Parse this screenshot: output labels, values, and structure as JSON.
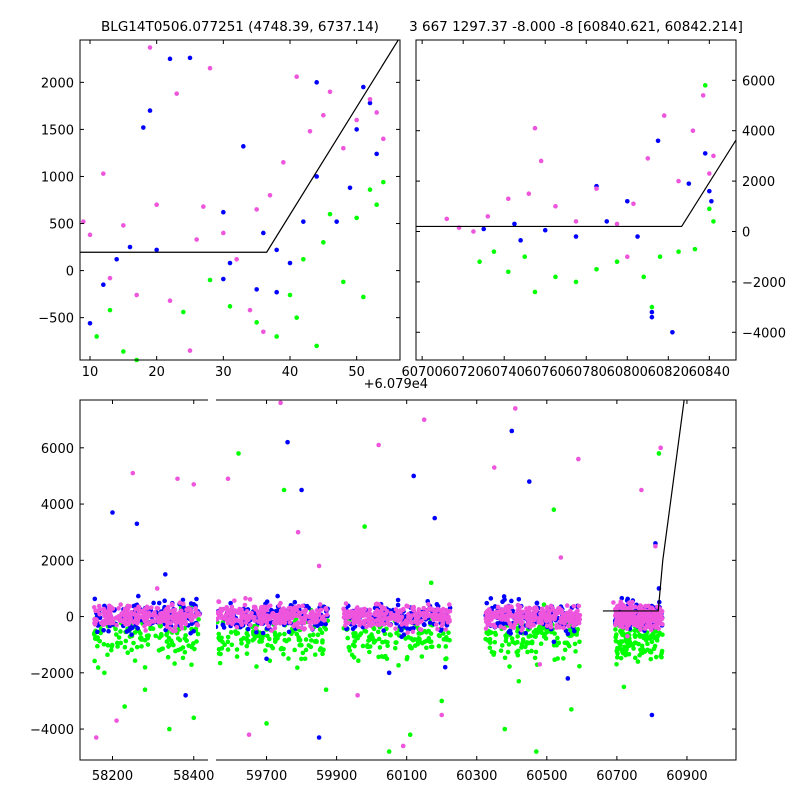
{
  "chart_data": [
    {
      "id": "top-left",
      "type": "scatter",
      "title": "BLG14T0506.077251 (4748.39, 6737.14)",
      "xlabel": "",
      "ylabel": "",
      "x_offset_label": "+6.079e4",
      "xlim": [
        8.5,
        56.5
      ],
      "ylim": [
        -950,
        2450
      ],
      "xticks": [
        10,
        20,
        30,
        40,
        50
      ],
      "yticks": [
        -500,
        0,
        500,
        1000,
        1500,
        2000
      ],
      "yaxis_side": "left",
      "series": [
        {
          "name": "blue",
          "color": "#0000ff",
          "points": [
            [
              10,
              -560
            ],
            [
              12,
              -150
            ],
            [
              14,
              120
            ],
            [
              16,
              250
            ],
            [
              18,
              1520
            ],
            [
              19,
              1700
            ],
            [
              20,
              220
            ],
            [
              22,
              2250
            ],
            [
              25,
              2260
            ],
            [
              30,
              620
            ],
            [
              31,
              80
            ],
            [
              33,
              1320
            ],
            [
              35,
              -200
            ],
            [
              36,
              400
            ],
            [
              38,
              220
            ],
            [
              40,
              80
            ],
            [
              42,
              520
            ],
            [
              44,
              1000
            ],
            [
              47,
              520
            ],
            [
              49,
              880
            ],
            [
              50,
              1500
            ],
            [
              51,
              1950
            ],
            [
              52,
              1780
            ],
            [
              53,
              1240
            ],
            [
              44,
              2000
            ],
            [
              38,
              -230
            ],
            [
              30,
              -90
            ]
          ]
        },
        {
          "name": "green",
          "color": "#00ff00",
          "points": [
            [
              11,
              -700
            ],
            [
              13,
              -420
            ],
            [
              15,
              -860
            ],
            [
              17,
              -950
            ],
            [
              24,
              -440
            ],
            [
              28,
              -100
            ],
            [
              31,
              -380
            ],
            [
              35,
              -550
            ],
            [
              38,
              -700
            ],
            [
              40,
              -260
            ],
            [
              42,
              120
            ],
            [
              44,
              -800
            ],
            [
              46,
              600
            ],
            [
              48,
              -120
            ],
            [
              50,
              560
            ],
            [
              51,
              -280
            ],
            [
              52,
              860
            ],
            [
              53,
              700
            ],
            [
              54,
              940
            ],
            [
              45,
              300
            ],
            [
              41,
              -500
            ]
          ]
        },
        {
          "name": "magenta",
          "color": "#ee55dd",
          "points": [
            [
              9,
              520
            ],
            [
              10,
              380
            ],
            [
              12,
              1030
            ],
            [
              13,
              -80
            ],
            [
              15,
              480
            ],
            [
              17,
              -260
            ],
            [
              19,
              2370
            ],
            [
              20,
              700
            ],
            [
              22,
              -320
            ],
            [
              23,
              1880
            ],
            [
              25,
              -850
            ],
            [
              27,
              680
            ],
            [
              28,
              2150
            ],
            [
              30,
              400
            ],
            [
              32,
              120
            ],
            [
              34,
              -420
            ],
            [
              35,
              650
            ],
            [
              37,
              800
            ],
            [
              39,
              1150
            ],
            [
              41,
              2060
            ],
            [
              43,
              1480
            ],
            [
              45,
              1650
            ],
            [
              46,
              1900
            ],
            [
              48,
              1300
            ],
            [
              50,
              1600
            ],
            [
              52,
              1820
            ],
            [
              53,
              1680
            ],
            [
              54,
              1400
            ],
            [
              36,
              -650
            ],
            [
              26,
              330
            ]
          ]
        }
      ],
      "model_line": {
        "x": [
          8.5,
          36.5,
          56.5
        ],
        "y": [
          195,
          195,
          2480
        ]
      }
    },
    {
      "id": "top-right",
      "type": "scatter",
      "title": "3 667 1297.37 -8.000 -8 [60840.621, 60842.214]",
      "xlabel": "",
      "ylabel": "",
      "xlim": [
        60697,
        60853
      ],
      "ylim": [
        -5100,
        7600
      ],
      "xticks": [
        60700,
        60720,
        60740,
        60760,
        60780,
        60800,
        60820,
        60840
      ],
      "yticks": [
        -4000,
        -2000,
        0,
        2000,
        4000,
        6000
      ],
      "yaxis_side": "right",
      "series": [
        {
          "name": "blue",
          "color": "#0000ff",
          "points": [
            [
              60730,
              100
            ],
            [
              60745,
              300
            ],
            [
              60760,
              50
            ],
            [
              60775,
              -200
            ],
            [
              60785,
              1800
            ],
            [
              60790,
              400
            ],
            [
              60800,
              1200
            ],
            [
              60812,
              -3400
            ],
            [
              60815,
              3600
            ],
            [
              60822,
              -4000
            ],
            [
              60830,
              1900
            ],
            [
              60838,
              3100
            ],
            [
              60840,
              1600
            ],
            [
              60841,
              1200
            ],
            [
              60812,
              -3200
            ],
            [
              60805,
              -200
            ],
            [
              60748,
              -350
            ]
          ]
        },
        {
          "name": "green",
          "color": "#00ff00",
          "points": [
            [
              60728,
              -1200
            ],
            [
              60735,
              -800
            ],
            [
              60742,
              -1600
            ],
            [
              60750,
              -1000
            ],
            [
              60755,
              -2400
            ],
            [
              60765,
              -1800
            ],
            [
              60775,
              -2000
            ],
            [
              60785,
              -1500
            ],
            [
              60795,
              -1200
            ],
            [
              60808,
              -1800
            ],
            [
              60812,
              -3000
            ],
            [
              60816,
              -1000
            ],
            [
              60825,
              -800
            ],
            [
              60833,
              -700
            ],
            [
              60838,
              5800
            ],
            [
              60840,
              900
            ],
            [
              60842,
              400
            ]
          ]
        },
        {
          "name": "magenta",
          "color": "#ee55dd",
          "points": [
            [
              60712,
              500
            ],
            [
              60718,
              150
            ],
            [
              60725,
              0
            ],
            [
              60732,
              600
            ],
            [
              60742,
              1300
            ],
            [
              60752,
              1500
            ],
            [
              60758,
              2800
            ],
            [
              60765,
              1000
            ],
            [
              60775,
              400
            ],
            [
              60785,
              1700
            ],
            [
              60795,
              300
            ],
            [
              60803,
              1100
            ],
            [
              60810,
              2900
            ],
            [
              60818,
              4600
            ],
            [
              60825,
              2000
            ],
            [
              60832,
              4000
            ],
            [
              60837,
              5400
            ],
            [
              60840,
              2300
            ],
            [
              60842,
              3000
            ],
            [
              60755,
              4100
            ],
            [
              60800,
              -1000
            ]
          ]
        }
      ],
      "model_line": {
        "x": [
          60697,
          60826.5,
          60853
        ],
        "y": [
          200,
          200,
          3630
        ]
      }
    },
    {
      "id": "bottom",
      "type": "scatter",
      "title": "",
      "xlabel": "",
      "ylabel": "",
      "axis_break": {
        "before": [
          58120,
          58440
        ],
        "after": [
          59550,
          61040
        ]
      },
      "ylim": [
        -5100,
        7700
      ],
      "xticks": [
        58200,
        58400,
        59700,
        59900,
        60100,
        60300,
        60500,
        60700,
        60900
      ],
      "yticks": [
        -4000,
        -2000,
        0,
        2000,
        4000,
        6000
      ],
      "yaxis_side": "left",
      "season_segments": [
        [
          58155,
          58415
        ],
        [
          59555,
          59875
        ],
        [
          59920,
          60225
        ],
        [
          60325,
          60595
        ],
        [
          60695,
          60830
        ]
      ],
      "series": [
        {
          "name": "blue",
          "color": "#0000ff",
          "points": [
            [
              58200,
              3700
            ],
            [
              58260,
              3300
            ],
            [
              58330,
              1500
            ],
            [
              58380,
              -2800
            ],
            [
              59700,
              -1500
            ],
            [
              59760,
              6200
            ],
            [
              59800,
              4500
            ],
            [
              59850,
              -4300
            ],
            [
              60050,
              -2000
            ],
            [
              60120,
              5000
            ],
            [
              60180,
              3500
            ],
            [
              60210,
              -1800
            ],
            [
              60400,
              6600
            ],
            [
              60450,
              4800
            ],
            [
              60520,
              -900
            ],
            [
              60560,
              -2200
            ],
            [
              60800,
              -3500
            ],
            [
              60810,
              2600
            ],
            [
              60820,
              1000
            ]
          ]
        },
        {
          "name": "green",
          "color": "#00ff00",
          "points": [
            [
              58180,
              -2000
            ],
            [
              58230,
              -3200
            ],
            [
              58280,
              -2600
            ],
            [
              58340,
              -4000
            ],
            [
              58400,
              -3600
            ],
            [
              59620,
              5800
            ],
            [
              59700,
              -3800
            ],
            [
              59750,
              4500
            ],
            [
              59810,
              -1500
            ],
            [
              59870,
              -2600
            ],
            [
              59980,
              3200
            ],
            [
              60050,
              -4800
            ],
            [
              60110,
              -4200
            ],
            [
              60170,
              1200
            ],
            [
              60200,
              -3000
            ],
            [
              60380,
              -4000
            ],
            [
              60420,
              -2300
            ],
            [
              60470,
              -4800
            ],
            [
              60520,
              3800
            ],
            [
              60570,
              -3300
            ],
            [
              60720,
              -2500
            ],
            [
              60760,
              -1600
            ],
            [
              60800,
              -900
            ],
            [
              60820,
              5800
            ]
          ]
        },
        {
          "name": "magenta",
          "color": "#ee55dd",
          "points": [
            [
              58160,
              -4300
            ],
            [
              58210,
              -3700
            ],
            [
              58250,
              5100
            ],
            [
              58310,
              1000
            ],
            [
              58360,
              4900
            ],
            [
              58400,
              4700
            ],
            [
              59590,
              4900
            ],
            [
              59650,
              -4200
            ],
            [
              59740,
              7600
            ],
            [
              59790,
              3000
            ],
            [
              59850,
              1800
            ],
            [
              59960,
              -2800
            ],
            [
              60020,
              6100
            ],
            [
              60090,
              -4600
            ],
            [
              60150,
              7000
            ],
            [
              60200,
              -3500
            ],
            [
              60350,
              5300
            ],
            [
              60410,
              7400
            ],
            [
              60480,
              -1700
            ],
            [
              60540,
              2100
            ],
            [
              60590,
              5600
            ],
            [
              60690,
              500
            ],
            [
              60730,
              -700
            ],
            [
              60770,
              4500
            ],
            [
              60810,
              2500
            ],
            [
              60825,
              6000
            ]
          ]
        }
      ],
      "model_line": {
        "x": [
          60660,
          60818,
          60831,
          60892
        ],
        "y": [
          200,
          200,
          2000,
          7700
        ]
      }
    }
  ]
}
